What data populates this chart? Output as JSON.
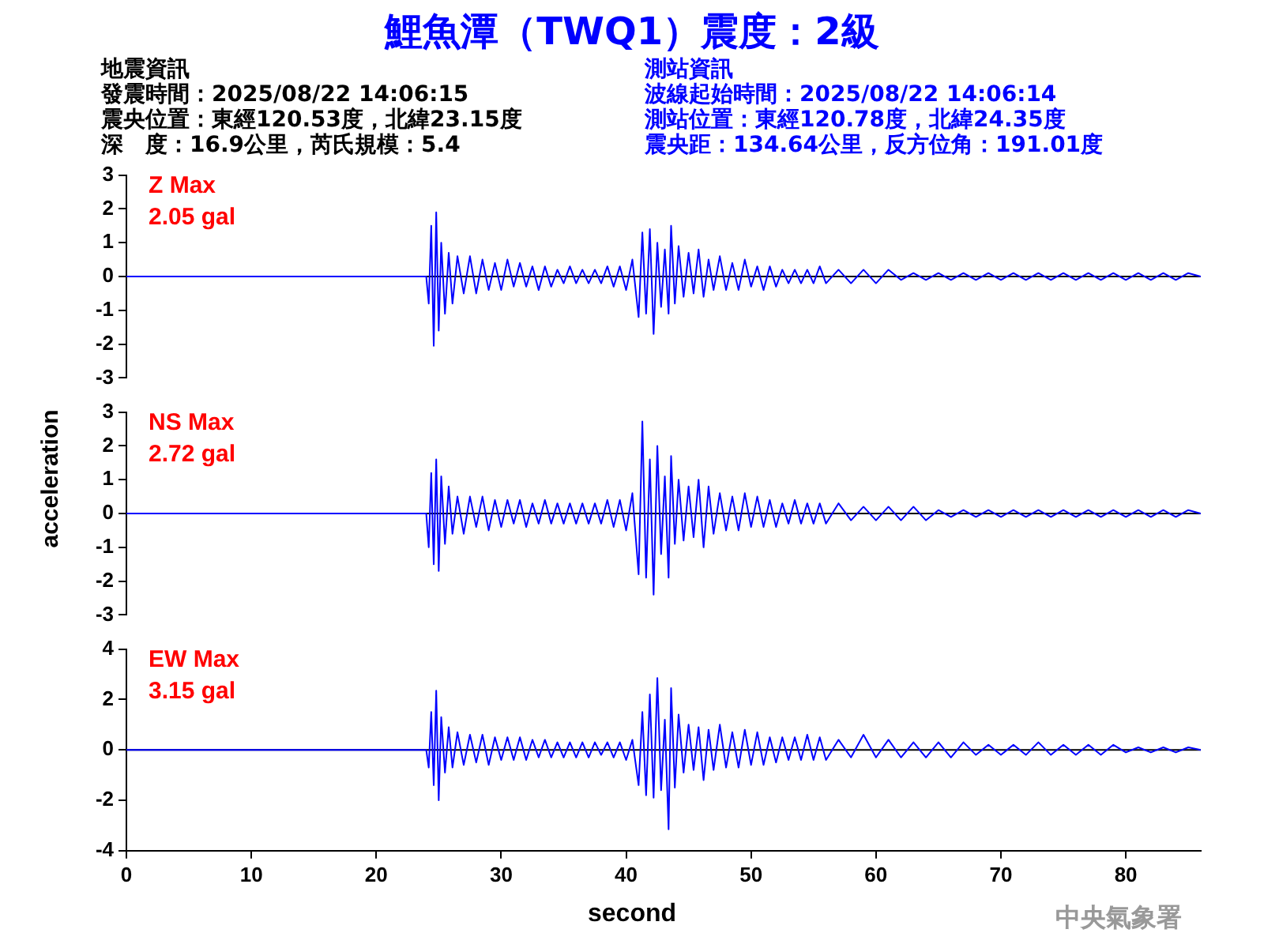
{
  "chart_data": [
    {
      "type": "line",
      "title": "鯉魚潭（TWQ1）震度：2級",
      "annotations": [
        "地震資訊",
        "發震時間：2025/08/22 14:06:15",
        "震央位置：東經120.53度，北緯23.15度",
        "深　度：16.9公里，芮氏規模：5.4",
        "測站資訊",
        "波線起始時間：2025/08/22 14:06:14",
        "測站位置：東經120.78度，北緯24.35度",
        "震央距：134.64公里，反方位角：191.01度",
        "Z Max",
        "2.05 gal"
      ],
      "x": [
        0,
        24,
        24.2,
        24.4,
        24.6,
        24.8,
        25,
        25.2,
        25.5,
        25.8,
        26.1,
        26.5,
        27,
        27.5,
        28,
        28.5,
        29,
        29.5,
        30,
        30.5,
        31,
        31.5,
        32,
        32.5,
        33,
        33.5,
        34,
        34.5,
        35,
        35.5,
        36,
        36.5,
        37,
        37.5,
        38,
        38.5,
        39,
        39.5,
        40,
        40.5,
        41,
        41.3,
        41.6,
        41.9,
        42.2,
        42.5,
        42.8,
        43.1,
        43.4,
        43.6,
        43.9,
        44.2,
        44.6,
        45,
        45.4,
        45.8,
        46.2,
        46.6,
        47,
        47.5,
        48,
        48.5,
        49,
        49.5,
        50,
        50.5,
        51,
        51.5,
        52,
        52.5,
        53,
        53.5,
        54,
        54.5,
        55,
        55.5,
        56,
        57,
        58,
        59,
        60,
        61,
        62,
        63,
        64,
        65,
        66,
        67,
        68,
        69,
        70,
        71,
        72,
        73,
        74,
        75,
        76,
        77,
        78,
        79,
        80,
        81,
        82,
        83,
        84,
        85,
        86
      ],
      "series": [
        {
          "color": "#0000ff",
          "values": [
            0,
            0,
            -0.8,
            1.5,
            -2.05,
            1.9,
            -1.6,
            1.0,
            -1.1,
            0.7,
            -0.8,
            0.6,
            -0.5,
            0.6,
            -0.5,
            0.5,
            -0.4,
            0.4,
            -0.4,
            0.5,
            -0.3,
            0.4,
            -0.3,
            0.3,
            -0.4,
            0.3,
            -0.3,
            0.2,
            -0.2,
            0.3,
            -0.2,
            0.2,
            -0.2,
            0.2,
            -0.2,
            0.3,
            -0.3,
            0.3,
            -0.4,
            0.5,
            -1.2,
            1.3,
            -1.1,
            1.4,
            -1.7,
            1.0,
            -0.9,
            0.8,
            -1.1,
            1.5,
            -0.8,
            0.9,
            -0.6,
            0.7,
            -0.5,
            0.8,
            -0.6,
            0.5,
            -0.4,
            0.6,
            -0.4,
            0.4,
            -0.4,
            0.5,
            -0.3,
            0.3,
            -0.4,
            0.3,
            -0.3,
            0.2,
            -0.2,
            0.2,
            -0.2,
            0.2,
            -0.2,
            0.3,
            -0.2,
            0.2,
            -0.2,
            0.2,
            -0.2,
            0.2,
            -0.1,
            0.1,
            -0.1,
            0.1,
            -0.1,
            0.1,
            -0.1,
            0.1,
            -0.1,
            0.1,
            -0.1,
            0.1,
            -0.1,
            0.1,
            -0.1,
            0.1,
            -0.1,
            0.1,
            -0.1,
            0.1,
            -0.1,
            0.1,
            -0.1,
            0.1,
            0
          ]
        }
      ],
      "xlim": [
        0,
        86
      ],
      "ylim": [
        -3,
        3
      ],
      "yticks": [
        -3,
        -2,
        -1,
        0,
        1,
        2,
        3
      ],
      "tick_labels": "y",
      "grid": false,
      "legend": false,
      "ref_lines": [
        {
          "axis": "y",
          "value": 0,
          "color": "#000000"
        }
      ]
    },
    {
      "type": "line",
      "ylabel": "acceleration",
      "annotations": [
        "NS Max",
        "2.72 gal"
      ],
      "x": [
        0,
        24,
        24.2,
        24.4,
        24.6,
        24.8,
        25,
        25.2,
        25.5,
        25.8,
        26.1,
        26.5,
        27,
        27.5,
        28,
        28.5,
        29,
        29.5,
        30,
        30.5,
        31,
        31.5,
        32,
        32.5,
        33,
        33.5,
        34,
        34.5,
        35,
        35.5,
        36,
        36.5,
        37,
        37.5,
        38,
        38.5,
        39,
        39.5,
        40,
        40.5,
        41,
        41.3,
        41.6,
        41.9,
        42.2,
        42.5,
        42.8,
        43.1,
        43.4,
        43.6,
        43.9,
        44.2,
        44.6,
        45,
        45.4,
        45.8,
        46.2,
        46.6,
        47,
        47.5,
        48,
        48.5,
        49,
        49.5,
        50,
        50.5,
        51,
        51.5,
        52,
        52.5,
        53,
        53.5,
        54,
        54.5,
        55,
        55.5,
        56,
        57,
        58,
        59,
        60,
        61,
        62,
        63,
        64,
        65,
        66,
        67,
        68,
        69,
        70,
        71,
        72,
        73,
        74,
        75,
        76,
        77,
        78,
        79,
        80,
        81,
        82,
        83,
        84,
        85,
        86
      ],
      "series": [
        {
          "color": "#0000ff",
          "values": [
            0,
            0,
            -1.0,
            1.2,
            -1.5,
            1.6,
            -1.7,
            1.1,
            -0.9,
            0.8,
            -0.6,
            0.5,
            -0.6,
            0.5,
            -0.4,
            0.5,
            -0.5,
            0.4,
            -0.4,
            0.4,
            -0.3,
            0.4,
            -0.4,
            0.3,
            -0.3,
            0.4,
            -0.3,
            0.3,
            -0.3,
            0.3,
            -0.3,
            0.3,
            -0.3,
            0.3,
            -0.3,
            0.4,
            -0.4,
            0.4,
            -0.5,
            0.6,
            -1.8,
            2.72,
            -1.9,
            1.6,
            -2.4,
            2.0,
            -1.2,
            1.1,
            -1.9,
            1.7,
            -0.9,
            1.0,
            -0.8,
            0.8,
            -0.7,
            1.0,
            -1.0,
            0.8,
            -0.6,
            0.6,
            -0.5,
            0.5,
            -0.5,
            0.6,
            -0.4,
            0.5,
            -0.4,
            0.4,
            -0.4,
            0.3,
            -0.3,
            0.4,
            -0.3,
            0.3,
            -0.3,
            0.3,
            -0.3,
            0.3,
            -0.2,
            0.2,
            -0.2,
            0.2,
            -0.2,
            0.2,
            -0.2,
            0.1,
            -0.1,
            0.1,
            -0.1,
            0.1,
            -0.1,
            0.1,
            -0.1,
            0.1,
            -0.1,
            0.1,
            -0.1,
            0.1,
            -0.1,
            0.1,
            -0.1,
            0.1,
            -0.1,
            0.1,
            -0.1,
            0.1,
            0
          ]
        }
      ],
      "xlim": [
        0,
        86
      ],
      "ylim": [
        -3,
        3
      ],
      "yticks": [
        -3,
        -2,
        -1,
        0,
        1,
        2,
        3
      ],
      "tick_labels": "y",
      "grid": false,
      "legend": false,
      "ref_lines": [
        {
          "axis": "y",
          "value": 0,
          "color": "#000000"
        }
      ]
    },
    {
      "type": "line",
      "xlabel": "second",
      "annotations": [
        "EW Max",
        "3.15 gal",
        "中央氣象署"
      ],
      "x": [
        0,
        24,
        24.2,
        24.4,
        24.6,
        24.8,
        25,
        25.2,
        25.5,
        25.8,
        26.1,
        26.5,
        27,
        27.5,
        28,
        28.5,
        29,
        29.5,
        30,
        30.5,
        31,
        31.5,
        32,
        32.5,
        33,
        33.5,
        34,
        34.5,
        35,
        35.5,
        36,
        36.5,
        37,
        37.5,
        38,
        38.5,
        39,
        39.5,
        40,
        40.5,
        41,
        41.3,
        41.6,
        41.9,
        42.2,
        42.5,
        42.8,
        43.1,
        43.4,
        43.6,
        43.9,
        44.2,
        44.6,
        45,
        45.4,
        45.8,
        46.2,
        46.6,
        47,
        47.5,
        48,
        48.5,
        49,
        49.5,
        50,
        50.5,
        51,
        51.5,
        52,
        52.5,
        53,
        53.5,
        54,
        54.5,
        55,
        55.5,
        56,
        57,
        58,
        59,
        60,
        61,
        62,
        63,
        64,
        65,
        66,
        67,
        68,
        69,
        70,
        71,
        72,
        73,
        74,
        75,
        76,
        77,
        78,
        79,
        80,
        81,
        82,
        83,
        84,
        85,
        86
      ],
      "series": [
        {
          "color": "#0000ff",
          "values": [
            0,
            0,
            -0.7,
            1.5,
            -1.4,
            2.35,
            -2.0,
            1.3,
            -0.9,
            0.9,
            -0.7,
            0.7,
            -0.6,
            0.6,
            -0.5,
            0.6,
            -0.6,
            0.5,
            -0.4,
            0.5,
            -0.4,
            0.5,
            -0.4,
            0.4,
            -0.3,
            0.4,
            -0.3,
            0.3,
            -0.3,
            0.3,
            -0.3,
            0.3,
            -0.3,
            0.3,
            -0.2,
            0.3,
            -0.3,
            0.3,
            -0.4,
            0.4,
            -1.4,
            1.5,
            -1.8,
            2.2,
            -1.9,
            2.85,
            -1.6,
            1.2,
            -3.15,
            2.45,
            -1.5,
            1.4,
            -0.9,
            1.0,
            -0.8,
            0.9,
            -1.2,
            0.8,
            -0.8,
            1.0,
            -0.7,
            0.7,
            -0.7,
            0.8,
            -0.6,
            0.7,
            -0.6,
            0.5,
            -0.5,
            0.5,
            -0.4,
            0.5,
            -0.4,
            0.6,
            -0.4,
            0.5,
            -0.4,
            0.4,
            -0.3,
            0.6,
            -0.3,
            0.4,
            -0.3,
            0.3,
            -0.3,
            0.3,
            -0.3,
            0.3,
            -0.2,
            0.2,
            -0.2,
            0.2,
            -0.2,
            0.3,
            -0.2,
            0.2,
            -0.2,
            0.2,
            -0.2,
            0.2,
            -0.1,
            0.1,
            -0.1,
            0.1,
            -0.1,
            0.1,
            0
          ]
        }
      ],
      "xlim": [
        0,
        86
      ],
      "xticks": [
        0,
        10,
        20,
        30,
        40,
        50,
        60,
        70,
        80
      ],
      "ylim": [
        -4,
        4
      ],
      "yticks": [
        -4,
        -2,
        0,
        2,
        4
      ],
      "grid": false,
      "legend": false,
      "ref_lines": [
        {
          "axis": "y",
          "value": 0,
          "color": "#000000"
        }
      ]
    }
  ]
}
